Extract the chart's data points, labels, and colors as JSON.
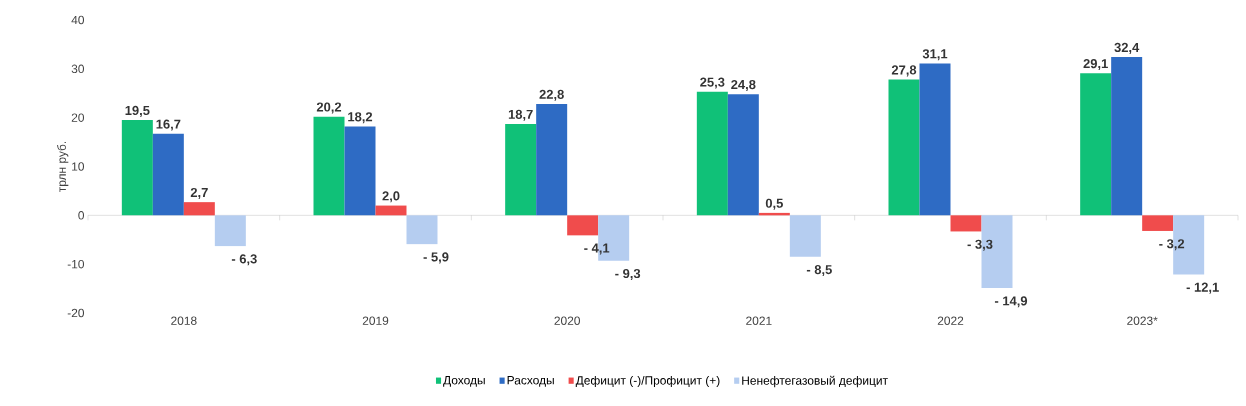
{
  "chart_data": {
    "type": "bar",
    "ylabel": "трлн руб.",
    "categories": [
      "2018",
      "2019",
      "2020",
      "2021",
      "2022",
      "2023*"
    ],
    "series": [
      {
        "name": "Доходы",
        "color": "#10c178",
        "values": [
          19.5,
          20.2,
          18.7,
          25.3,
          27.8,
          29.1
        ],
        "value_labels": [
          "19,5",
          "20,2",
          "18,7",
          "25,3",
          "27,8",
          "29,1"
        ]
      },
      {
        "name": "Расходы",
        "color": "#2e6bc4",
        "values": [
          16.7,
          18.2,
          22.8,
          24.8,
          31.1,
          32.4
        ],
        "value_labels": [
          "16,7",
          "18,2",
          "22,8",
          "24,8",
          "31,1",
          "32,4"
        ]
      },
      {
        "name": "Дефицит (-)/Профицит (+)",
        "color": "#f04c4c",
        "values": [
          2.7,
          2.0,
          -4.1,
          0.5,
          -3.3,
          -3.2
        ],
        "value_labels": [
          "2,7",
          "2,0",
          "- 4,1",
          "0,5",
          "- 3,3",
          "- 3,2"
        ]
      },
      {
        "name": "Ненефтегазовый дефицит",
        "color": "#b5cdf0",
        "values": [
          -6.3,
          -5.9,
          -9.3,
          -8.5,
          -14.9,
          -12.1
        ],
        "value_labels": [
          "- 6,3",
          "- 5,9",
          "- 9,3",
          "- 8,5",
          "- 14,9",
          "- 12,1"
        ]
      }
    ],
    "ylim": [
      -20,
      40
    ],
    "yticks": [
      -20,
      -10,
      0,
      10,
      20,
      30,
      40
    ],
    "legend": "bottom"
  }
}
